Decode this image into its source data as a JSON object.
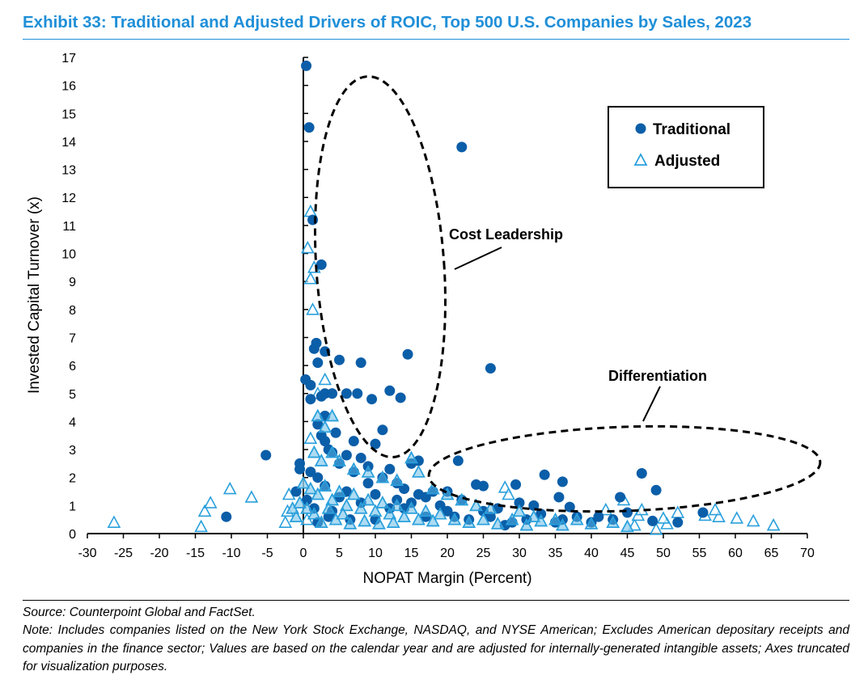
{
  "title": "Exhibit 33: Traditional and Adjusted Drivers of ROIC, Top 500 U.S. Companies by Sales, 2023",
  "source": "Source: Counterpoint Global and FactSet.",
  "note": "Note: Includes companies listed on the New York Stock Exchange, NASDAQ, and NYSE American; Excludes American depositary receipts and companies in the finance sector; Values are based on the calendar year and are adjusted for internally-generated intangible assets; Axes truncated for visualization purposes.",
  "colors": {
    "traditional": "#0b5ea8",
    "adjusted": "#2aa0dc",
    "title": "#1f8fd8"
  },
  "chart_data": {
    "type": "scatter",
    "title": "Exhibit 33: Traditional and Adjusted Drivers of ROIC, Top 500 U.S. Companies by Sales, 2023",
    "xlabel": "NOPAT Margin (Percent)",
    "ylabel": "Invested Capital Turnover (x)",
    "xlim": [
      -30,
      70
    ],
    "ylim": [
      0,
      17
    ],
    "xticks": [
      "-30",
      "-25",
      "-20",
      "-15",
      "-10",
      "-5",
      "0",
      "5",
      "10",
      "15",
      "20",
      "25",
      "30",
      "35",
      "40",
      "45",
      "50",
      "55",
      "60",
      "65",
      "70"
    ],
    "yticks": [
      "0",
      "1",
      "2",
      "3",
      "4",
      "5",
      "6",
      "7",
      "8",
      "9",
      "10",
      "11",
      "12",
      "13",
      "14",
      "15",
      "16",
      "17"
    ],
    "grid": false,
    "legend_position": "top-right",
    "annotations": [
      "Cost Leadership",
      "Differentiation"
    ],
    "series": [
      {
        "name": "Traditional",
        "marker": "circle",
        "points": [
          [
            0.4,
            16.7
          ],
          [
            0.8,
            14.5
          ],
          [
            22,
            13.8
          ],
          [
            1.3,
            11.2
          ],
          [
            2.5,
            9.6
          ],
          [
            14.5,
            6.4
          ],
          [
            26,
            5.9
          ],
          [
            1.5,
            6.6
          ],
          [
            1.8,
            6.8
          ],
          [
            2,
            6.1
          ],
          [
            3,
            6.5
          ],
          [
            5,
            6.2
          ],
          [
            8,
            6.1
          ],
          [
            0.3,
            5.5
          ],
          [
            1,
            5.3
          ],
          [
            3,
            5
          ],
          [
            4,
            5
          ],
          [
            6,
            5
          ],
          [
            7.5,
            5
          ],
          [
            9.5,
            4.8
          ],
          [
            12,
            5.1
          ],
          [
            13.5,
            4.85
          ],
          [
            1,
            4.8
          ],
          [
            2.5,
            4.9
          ],
          [
            -5.2,
            2.8
          ],
          [
            -10.7,
            0.6
          ],
          [
            21.5,
            2.6
          ],
          [
            33.5,
            2.1
          ],
          [
            36,
            1.85
          ],
          [
            35.5,
            1.3
          ],
          [
            47,
            2.15
          ],
          [
            49,
            1.55
          ],
          [
            44,
            1.3
          ],
          [
            37,
            0.95
          ],
          [
            45,
            0.75
          ],
          [
            48.5,
            0.45
          ],
          [
            52,
            0.4
          ],
          [
            55.5,
            0.75
          ],
          [
            20,
            1.5
          ],
          [
            24,
            1.75
          ],
          [
            25,
            1.7
          ],
          [
            29.5,
            1.75
          ],
          [
            11,
            3.7
          ],
          [
            10,
            3.2
          ],
          [
            15,
            2.5
          ],
          [
            3,
            4.2
          ],
          [
            2.5,
            3.5
          ],
          [
            3.5,
            3.0
          ],
          [
            -0.5,
            2.5
          ],
          [
            -0.5,
            2.3
          ],
          [
            -1,
            1.5
          ],
          [
            1,
            2.2
          ],
          [
            5,
            2.5
          ],
          [
            7,
            3.3
          ],
          [
            8,
            2.7
          ],
          [
            12,
            2.3
          ],
          [
            16,
            2.6
          ],
          [
            18,
            1.5
          ],
          [
            30,
            1.1
          ],
          [
            32,
            1.0
          ],
          [
            40,
            0.4
          ],
          [
            43,
            0.5
          ],
          [
            27,
            0.9
          ],
          [
            22,
            1.2
          ],
          [
            19,
            1.0
          ],
          [
            6,
            1.5
          ],
          [
            9,
            1.8
          ],
          [
            13,
            1.2
          ],
          [
            14,
            0.9
          ],
          [
            4,
            0.8
          ],
          [
            2,
            0.4
          ],
          [
            10,
            0.5
          ],
          [
            17,
            0.6
          ],
          [
            23,
            0.5
          ],
          [
            28,
            0.3
          ],
          [
            35,
            0.4
          ],
          [
            38,
            0.6
          ],
          [
            25,
            0.8
          ],
          [
            2,
            3.9
          ],
          [
            3,
            3.3
          ],
          [
            4,
            2.9
          ],
          [
            4.5,
            3.6
          ],
          [
            6,
            2.8
          ],
          [
            7,
            2.2
          ],
          [
            9,
            2.4
          ],
          [
            11,
            2.0
          ],
          [
            13,
            1.8
          ],
          [
            14,
            1.6
          ],
          [
            16,
            1.4
          ],
          [
            2,
            2.0
          ],
          [
            3,
            1.7
          ],
          [
            5,
            1.3
          ],
          [
            8,
            1.1
          ],
          [
            10,
            1.4
          ],
          [
            12,
            0.9
          ],
          [
            15,
            1.1
          ],
          [
            17,
            1.3
          ],
          [
            20,
            0.8
          ],
          [
            21,
            0.6
          ],
          [
            26,
            0.6
          ],
          [
            31,
            0.5
          ],
          [
            33,
            0.7
          ],
          [
            29,
            0.4
          ],
          [
            36,
            0.5
          ],
          [
            41,
            0.6
          ],
          [
            0.5,
            1.2
          ],
          [
            1.5,
            0.9
          ],
          [
            3.5,
            0.6
          ],
          [
            6.5,
            0.5
          ]
        ]
      },
      {
        "name": "Adjusted",
        "marker": "triangle",
        "points": [
          [
            -26.3,
            0.4
          ],
          [
            -14.2,
            0.25
          ],
          [
            -13.7,
            0.8
          ],
          [
            -12.9,
            1.1
          ],
          [
            -10.2,
            1.6
          ],
          [
            -7.2,
            1.3
          ],
          [
            1,
            11.5
          ],
          [
            0.6,
            10.2
          ],
          [
            1.5,
            9.5
          ],
          [
            1,
            9.1
          ],
          [
            1.3,
            8
          ],
          [
            3,
            5.5
          ],
          [
            2,
            5
          ],
          [
            1,
            3.4
          ],
          [
            65.3,
            0.3
          ],
          [
            62.5,
            0.45
          ],
          [
            60.2,
            0.55
          ],
          [
            57.7,
            0.6
          ],
          [
            57.2,
            0.85
          ],
          [
            55.8,
            0.65
          ],
          [
            52,
            0.75
          ],
          [
            50.5,
            0.35
          ],
          [
            50,
            0.55
          ],
          [
            49,
            0.15
          ],
          [
            46,
            0.3
          ],
          [
            46.5,
            0.65
          ],
          [
            47,
            0.85
          ],
          [
            44.5,
            1.2
          ],
          [
            42,
            0.85
          ],
          [
            28,
            1.65
          ],
          [
            28.5,
            1.4
          ],
          [
            -2,
            1.4
          ],
          [
            -2.5,
            0.4
          ],
          [
            -2.2,
            0.8
          ],
          [
            0.5,
            0.5
          ],
          [
            2,
            4.2
          ],
          [
            3,
            3.8
          ],
          [
            4,
            4.2
          ],
          [
            1.5,
            2.9
          ],
          [
            2.5,
            2.6
          ],
          [
            4,
            2.9
          ],
          [
            5,
            2.6
          ],
          [
            7,
            2.3
          ],
          [
            9,
            2.2
          ],
          [
            11,
            2.0
          ],
          [
            13,
            1.9
          ],
          [
            15,
            2.7
          ],
          [
            16,
            2.2
          ],
          [
            18,
            1.6
          ],
          [
            20,
            1.4
          ],
          [
            22,
            1.2
          ],
          [
            24,
            1.0
          ],
          [
            26,
            0.9
          ],
          [
            30,
            0.8
          ],
          [
            32,
            0.6
          ],
          [
            35,
            0.5
          ],
          [
            38,
            0.5
          ],
          [
            40,
            0.35
          ],
          [
            43,
            0.4
          ],
          [
            45,
            0.25
          ],
          [
            0,
            1.8
          ],
          [
            1,
            1.6
          ],
          [
            2,
            1.4
          ],
          [
            3,
            1.7
          ],
          [
            4,
            1.2
          ],
          [
            5,
            1.5
          ],
          [
            6,
            1.0
          ],
          [
            7,
            1.4
          ],
          [
            8,
            0.9
          ],
          [
            9,
            1.2
          ],
          [
            10,
            0.8
          ],
          [
            11,
            1.1
          ],
          [
            12,
            0.7
          ],
          [
            13,
            1.0
          ],
          [
            14,
            0.6
          ],
          [
            15,
            0.9
          ],
          [
            16,
            0.5
          ],
          [
            17,
            0.8
          ],
          [
            18,
            0.45
          ],
          [
            19,
            0.7
          ],
          [
            21,
            0.5
          ],
          [
            23,
            0.4
          ],
          [
            25,
            0.5
          ],
          [
            27,
            0.35
          ],
          [
            29,
            0.5
          ],
          [
            31,
            0.3
          ],
          [
            33,
            0.45
          ],
          [
            36,
            0.3
          ],
          [
            0.5,
            0.9
          ],
          [
            1.5,
            0.7
          ],
          [
            2.5,
            0.4
          ],
          [
            3.5,
            0.9
          ],
          [
            4.5,
            0.5
          ],
          [
            5.5,
            0.7
          ],
          [
            6.5,
            0.35
          ],
          [
            8.5,
            0.45
          ],
          [
            10.5,
            0.35
          ],
          [
            12.5,
            0.4
          ],
          [
            -1,
            0.6
          ],
          [
            -0.5,
            1.1
          ],
          [
            -1.5,
            0.9
          ]
        ]
      }
    ]
  }
}
